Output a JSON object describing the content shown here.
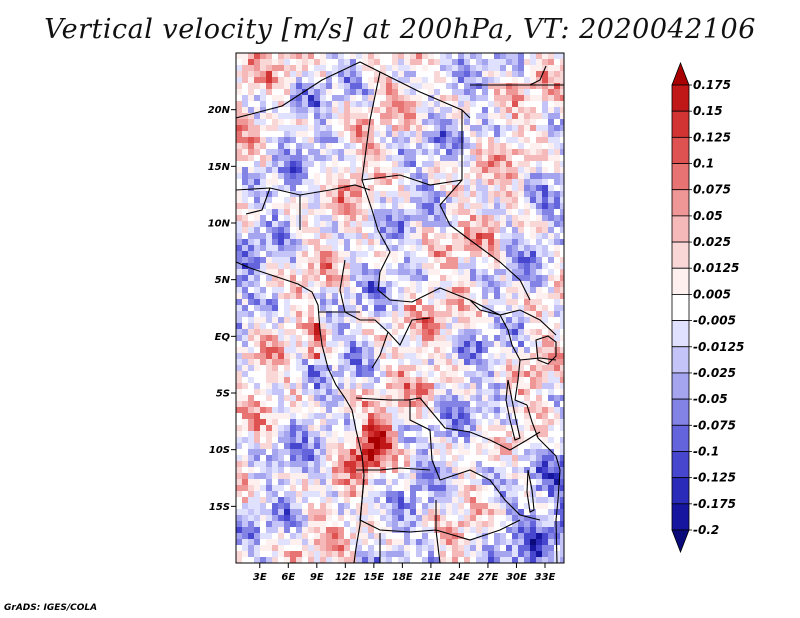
{
  "chart_data": {
    "type": "heatmap",
    "title": "Vertical velocity [m/s] at 200hPa, VT: 2020042106",
    "x_tick_labels": [
      "3E",
      "6E",
      "9E",
      "12E",
      "15E",
      "18E",
      "21E",
      "24E",
      "27E",
      "30E",
      "33E"
    ],
    "x_tick_values": [
      3,
      6,
      9,
      12,
      15,
      18,
      21,
      24,
      27,
      30,
      33
    ],
    "y_tick_labels": [
      "20N",
      "15N",
      "10N",
      "5N",
      "EQ",
      "5S",
      "10S",
      "15S"
    ],
    "y_tick_values": [
      20,
      15,
      10,
      5,
      0,
      -5,
      -10,
      -15
    ],
    "xlim": [
      0.5,
      35
    ],
    "ylim": [
      -20,
      25
    ],
    "colorbar": {
      "levels": [
        "0.175",
        "0.15",
        "0.125",
        "0.1",
        "0.075",
        "0.05",
        "0.025",
        "0.0125",
        "0.005",
        "-0.005",
        "-0.0125",
        "-0.025",
        "-0.05",
        "-0.075",
        "-0.1",
        "-0.125",
        "-0.175",
        "-0.2"
      ],
      "colors": [
        "#a80000",
        "#c01818",
        "#d23434",
        "#df5252",
        "#e87373",
        "#ef9696",
        "#f5b9b9",
        "#fad7d7",
        "#fff0f0",
        "#ffffff",
        "#e0e0ff",
        "#c4c4f8",
        "#a4a4ef",
        "#8383e6",
        "#6464dc",
        "#4646cf",
        "#2b2bb9",
        "#1515a0",
        "#0a0a7a"
      ]
    },
    "field_description": "Mixed noisy field of positive (red) and negative (blue) vertical velocity over Central Africa with strongest upward motion near 12E-16E, 8S-11S"
  },
  "credit": "GrADS: IGES/COLA"
}
